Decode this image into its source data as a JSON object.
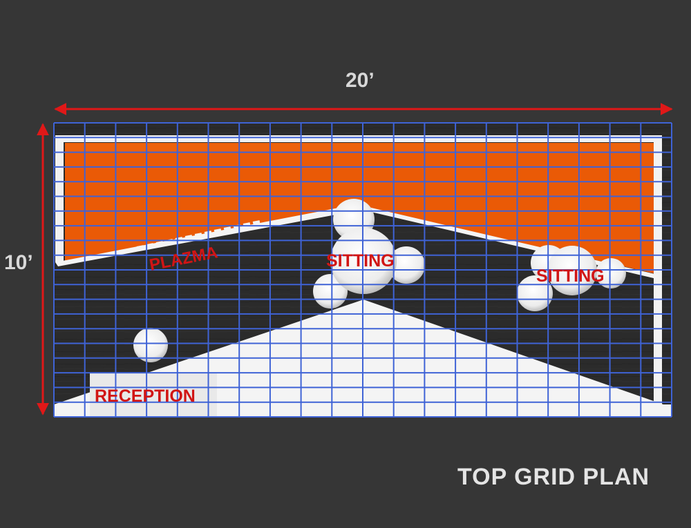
{
  "dimensions": {
    "width_label": "20’",
    "height_label": "10’"
  },
  "zones": {
    "plazma": "PLAZMA",
    "sitting_center": "SITTING",
    "sitting_right": "SITTING",
    "reception": "RECEPTION"
  },
  "title": "TOP GRID PLAN",
  "colors": {
    "background": "#363636",
    "wall_graphic": "#ea5a06",
    "grid": "#3f63d6",
    "dimension_arrow": "#e01818",
    "zone_label": "#d11515",
    "floor_dark": "#2a2a2a",
    "floor_light": "#f4f4f4"
  }
}
